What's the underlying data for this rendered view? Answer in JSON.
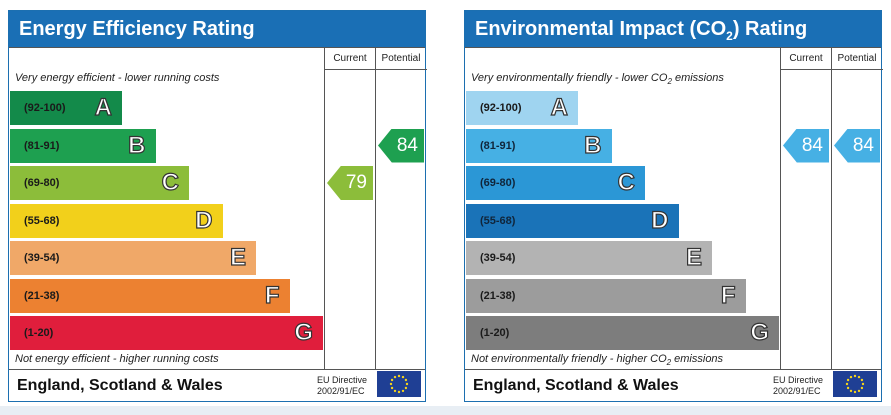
{
  "chart_data": [
    {
      "type": "bar",
      "title": "Energy Efficiency Rating",
      "column_headers": {
        "current": "Current",
        "potential": "Potential"
      },
      "top_note": "Very energy efficient - lower running costs",
      "bottom_note": "Not energy efficient - higher running costs",
      "categories": [
        "A",
        "B",
        "C",
        "D",
        "E",
        "F",
        "G"
      ],
      "ranges": [
        "(92-100)",
        "(81-91)",
        "(69-80)",
        "(55-68)",
        "(39-54)",
        "(21-38)",
        "(1-20)"
      ],
      "colors": [
        "#138a4a",
        "#1ea050",
        "#8cbd3a",
        "#f2d01b",
        "#f0a868",
        "#ec8131",
        "#e01e3c"
      ],
      "current": {
        "value": 79,
        "band": "C",
        "color": "#8cbd3a"
      },
      "potential": {
        "value": 84,
        "band": "B",
        "color": "#1ea050"
      },
      "footer": {
        "country": "England, Scotland & Wales",
        "directive_line1": "EU Directive",
        "directive_line2": "2002/91/EC"
      }
    },
    {
      "type": "bar",
      "title": "Environmental Impact (CO",
      "title_sub": "2",
      "title_tail": ") Rating",
      "column_headers": {
        "current": "Current",
        "potential": "Potential"
      },
      "top_note": "Very environmentally friendly - lower CO",
      "top_note_sub": "2",
      "top_note_tail": " emissions",
      "bottom_note": "Not environmentally friendly - higher CO",
      "bottom_note_sub": "2",
      "bottom_note_tail": " emissions",
      "categories": [
        "A",
        "B",
        "C",
        "D",
        "E",
        "F",
        "G"
      ],
      "ranges": [
        "(92-100)",
        "(81-91)",
        "(69-80)",
        "(55-68)",
        "(39-54)",
        "(21-38)",
        "(1-20)"
      ],
      "colors": [
        "#9fd4f0",
        "#46b0e4",
        "#2b97d6",
        "#1a73b8",
        "#b3b3b3",
        "#9c9c9c",
        "#7d7d7d"
      ],
      "current": {
        "value": 84,
        "band": "B",
        "color": "#46b0e4"
      },
      "potential": {
        "value": 84,
        "band": "B",
        "color": "#46b0e4"
      },
      "footer": {
        "country": "England, Scotland & Wales",
        "directive_line1": "EU Directive",
        "directive_line2": "2002/91/EC"
      }
    }
  ]
}
